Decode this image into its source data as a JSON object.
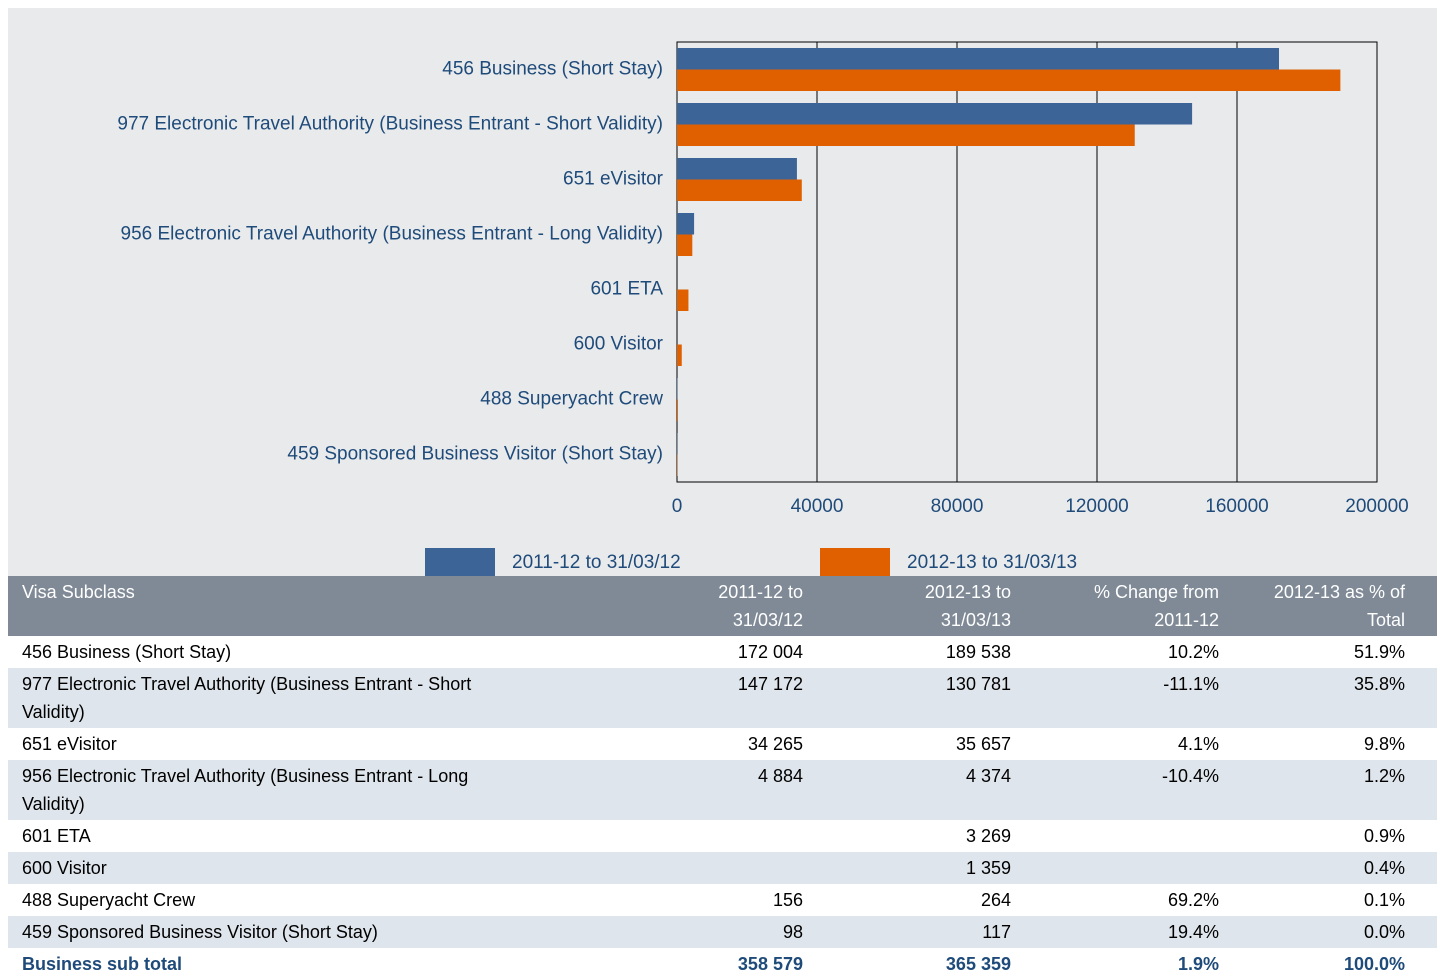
{
  "chart_data": {
    "type": "bar",
    "orientation": "horizontal",
    "categories": [
      "456 Business (Short Stay)",
      "977 Electronic Travel Authority (Business Entrant - Short Validity)",
      "651 eVisitor",
      "956 Electronic Travel Authority (Business Entrant - Long Validity)",
      "601 ETA",
      "600 Visitor",
      "488 Superyacht Crew",
      "459 Sponsored Business Visitor (Short Stay)"
    ],
    "series": [
      {
        "name": "2011-12 to 31/03/12",
        "color": "#3d6497",
        "values": [
          172004,
          147172,
          34265,
          4884,
          null,
          null,
          156,
          98
        ]
      },
      {
        "name": "2012-13 to 31/03/13",
        "color": "#e06000",
        "values": [
          189538,
          130781,
          35657,
          4374,
          3269,
          1359,
          264,
          117
        ]
      }
    ],
    "xlim": [
      0,
      200000
    ],
    "xticks": [
      0,
      40000,
      80000,
      120000,
      160000,
      200000
    ],
    "grid": true
  },
  "table": {
    "header": [
      "Visa Subclass",
      "2011-12 to 31/03/12",
      "2012-13 to 31/03/13",
      "% Change from 2011-12",
      "2012-13 as % of Total"
    ],
    "rows": [
      [
        "456 Business (Short Stay)",
        "172 004",
        "189 538",
        "10.2%",
        "51.9%"
      ],
      [
        "977 Electronic Travel Authority (Business Entrant - Short Validity)",
        "147 172",
        "130 781",
        "-11.1%",
        "35.8%"
      ],
      [
        "651 eVisitor",
        "34 265",
        "35 657",
        "4.1%",
        "9.8%"
      ],
      [
        "956 Electronic Travel Authority (Business Entrant - Long Validity)",
        "4 884",
        "4 374",
        "-10.4%",
        "1.2%"
      ],
      [
        "601 ETA",
        null,
        "3 269",
        null,
        "0.9%"
      ],
      [
        "600 Visitor",
        null,
        "1 359",
        null,
        "0.4%"
      ],
      [
        "488 Superyacht Crew",
        "156",
        "264",
        "69.2%",
        "0.1%"
      ],
      [
        "459 Sponsored Business Visitor (Short Stay)",
        "98",
        "117",
        "19.4%",
        "0.0%"
      ]
    ],
    "total": [
      "Business sub total",
      "358 579",
      "365 359",
      "1.9%",
      "100.0%"
    ]
  }
}
